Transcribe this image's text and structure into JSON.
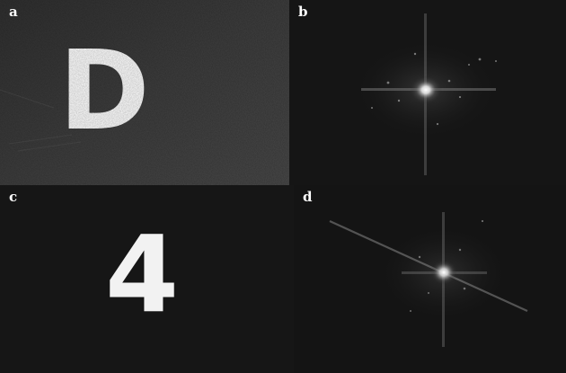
{
  "panels": [
    {
      "label": "a",
      "content": "letter-image",
      "glyph": "D"
    },
    {
      "label": "b",
      "content": "fourier-spectrum"
    },
    {
      "label": "c",
      "content": "digit-image",
      "glyph": "4"
    },
    {
      "label": "d",
      "content": "fourier-spectrum"
    }
  ],
  "colors": {
    "panel_a_background": "#3a3a3a",
    "panel_b_background": "#151515",
    "panel_c_background": "#161616",
    "panel_d_background": "#141414",
    "glyph_color": "#f2f2f2",
    "label_color": "#ffffff"
  }
}
